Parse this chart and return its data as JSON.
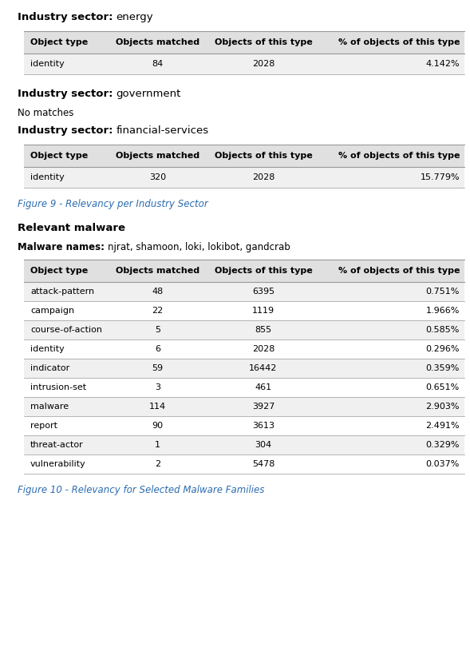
{
  "background_color": "#ffffff",
  "fig_width": 5.89,
  "fig_height": 8.25,
  "dpi": 100,
  "section1_title_bold": "Industry sector:",
  "section1_title_normal": "energy",
  "table1_headers": [
    "Object type",
    "Objects matched",
    "Objects of this type",
    "% of objects of this type"
  ],
  "table1_rows": [
    [
      "identity",
      "84",
      "2028",
      "4.142%"
    ]
  ],
  "section2_title_bold": "Industry sector:",
  "section2_title_normal": "government",
  "section2_no_matches": "No matches",
  "section3_title_bold": "Industry sector:",
  "section3_title_normal": "financial-services",
  "table2_headers": [
    "Object type",
    "Objects matched",
    "Objects of this type",
    "% of objects of this type"
  ],
  "table2_rows": [
    [
      "identity",
      "320",
      "2028",
      "15.779%"
    ]
  ],
  "figure9_caption": "Figure 9 - Relevancy per Industry Sector",
  "section4_title": "Relevant malware",
  "section4_malware_bold": "Malware names:",
  "section4_malware_normal": "njrat, shamoon, loki, lokibot, gandcrab",
  "table3_headers": [
    "Object type",
    "Objects matched",
    "Objects of this type",
    "% of objects of this type"
  ],
  "table3_rows": [
    [
      "attack-pattern",
      "48",
      "6395",
      "0.751%"
    ],
    [
      "campaign",
      "22",
      "1119",
      "1.966%"
    ],
    [
      "course-of-action",
      "5",
      "855",
      "0.585%"
    ],
    [
      "identity",
      "6",
      "2028",
      "0.296%"
    ],
    [
      "indicator",
      "59",
      "16442",
      "0.359%"
    ],
    [
      "intrusion-set",
      "3",
      "461",
      "0.651%"
    ],
    [
      "malware",
      "114",
      "3927",
      "2.903%"
    ],
    [
      "report",
      "90",
      "3613",
      "2.491%"
    ],
    [
      "threat-actor",
      "1",
      "304",
      "0.329%"
    ],
    [
      "vulnerability",
      "2",
      "5478",
      "0.037%"
    ]
  ],
  "figure10_caption": "Figure 10 - Relevancy for Selected Malware Families",
  "header_bg_color": "#e0e0e0",
  "row_alt_color": "#f0f0f0",
  "row_white_color": "#ffffff",
  "caption_color": "#2b6cb0",
  "text_color": "#000000",
  "border_color": "#999999",
  "section_fontsize": 9.5,
  "header_fontsize": 8.0,
  "body_fontsize": 8.0,
  "caption_fontsize": 8.5,
  "nomatch_fontsize": 8.5
}
